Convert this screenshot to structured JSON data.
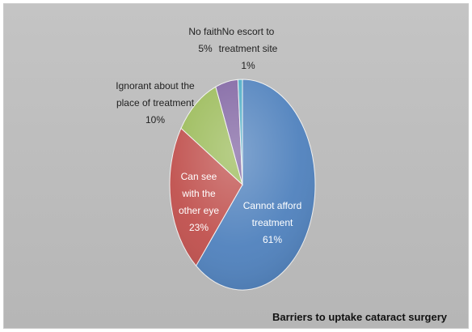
{
  "chart_data": {
    "type": "pie",
    "title": "Barriers to uptake cataract surgery",
    "start_angle_deg": 0,
    "slices": [
      {
        "label_lines": [
          "Cannot afford",
          "treatment"
        ],
        "value": 61,
        "value_text": "61%",
        "color": "#4f81bd",
        "label_color": "#ffffff",
        "label_mode": "inside"
      },
      {
        "label_lines": [
          "Can see",
          "with the",
          "other eye"
        ],
        "value": 23,
        "value_text": "23%",
        "color": "#c0504d",
        "label_color": "#ffffff",
        "label_mode": "inside"
      },
      {
        "label_lines": [
          "Ignorant about the",
          "place of treatment"
        ],
        "value": 10,
        "value_text": "10%",
        "color": "#9bbb59",
        "label_color": "#222222",
        "label_mode": "outside"
      },
      {
        "label_lines": [
          "No faith"
        ],
        "value": 5,
        "value_text": "5%",
        "color": "#8064a2",
        "label_color": "#222222",
        "label_mode": "outside"
      },
      {
        "label_lines": [
          "No escort to",
          "treatment site"
        ],
        "value": 1,
        "value_text": "1%",
        "color": "#4bacc6",
        "label_color": "#222222",
        "label_mode": "outside"
      }
    ],
    "legend": "none"
  }
}
